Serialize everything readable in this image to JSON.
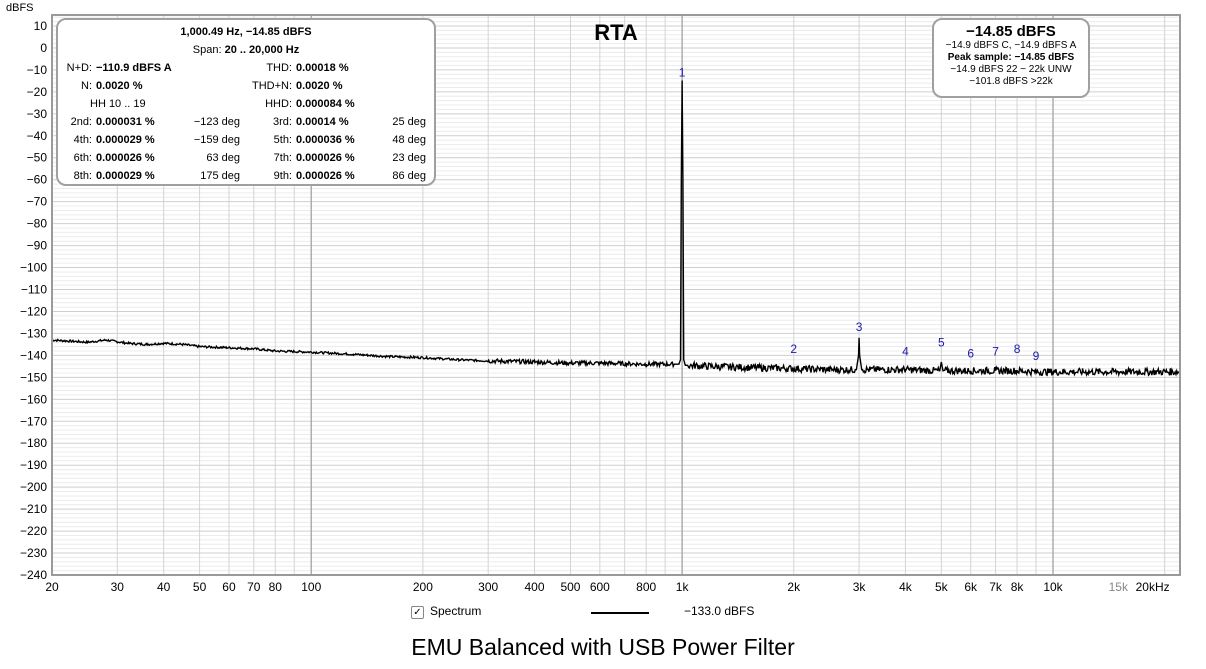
{
  "chart_data": {
    "type": "line",
    "title": "RTA",
    "bottom_title": "EMU Balanced with USB Power Filter",
    "ylabel": "dBFS",
    "xlabel": "",
    "x_scale": "log",
    "xlim": [
      20,
      22000
    ],
    "ylim": [
      -240,
      15
    ],
    "grid": true,
    "y_ticks": [
      10,
      0,
      -10,
      -20,
      -30,
      -40,
      -50,
      -60,
      -70,
      -80,
      -90,
      -100,
      -110,
      -120,
      -130,
      -140,
      -150,
      -160,
      -170,
      -180,
      -190,
      -200,
      -210,
      -220,
      -230,
      -240
    ],
    "y_tick_labels": [
      "10",
      "0",
      "−10",
      "−20",
      "−30",
      "−40",
      "−50",
      "−60",
      "−70",
      "−80",
      "−90",
      "−100",
      "−110",
      "−120",
      "−130",
      "−140",
      "−150",
      "−160",
      "−170",
      "−180",
      "−190",
      "−200",
      "−210",
      "−220",
      "−230",
      "−240"
    ],
    "x_ticks": [
      20,
      30,
      40,
      50,
      60,
      70,
      80,
      100,
      200,
      300,
      400,
      500,
      600,
      800,
      1000,
      2000,
      3000,
      4000,
      5000,
      6000,
      7000,
      8000,
      10000,
      15000,
      20000
    ],
    "x_tick_labels": [
      "20",
      "30",
      "40",
      "50",
      "60",
      "70",
      "80",
      "100",
      "200",
      "300",
      "400",
      "500",
      "600",
      "800",
      "1k",
      "2k",
      "3k",
      "4k",
      "5k",
      "6k",
      "7k",
      "8k",
      "10k",
      "15k",
      "20kHz"
    ],
    "series": [
      {
        "name": "Spectrum",
        "color": "#000000",
        "x": [
          20,
          25,
          28,
          32,
          36,
          40,
          45,
          50,
          60,
          70,
          80,
          100,
          130,
          160,
          200,
          250,
          300,
          400,
          500,
          600,
          800,
          980,
          990,
          995,
          1000,
          1005,
          1010,
          1020,
          1200,
          1500,
          2000,
          2500,
          2950,
          2990,
          3000,
          3010,
          3050,
          4000,
          4950,
          5000,
          5050,
          6000,
          7000,
          8000,
          9000,
          10000,
          12000,
          15000,
          18000,
          22000
        ],
        "y": [
          -133,
          -134,
          -133,
          -134.5,
          -135,
          -134.5,
          -135,
          -136,
          -136.5,
          -137,
          -138,
          -138.5,
          -139.5,
          -140.5,
          -141,
          -142,
          -142.5,
          -143,
          -143.5,
          -143.5,
          -144,
          -144,
          -142,
          -60,
          -14.85,
          -60,
          -142,
          -144.5,
          -145,
          -145.5,
          -146,
          -146.5,
          -146.5,
          -140,
          -132,
          -140,
          -146.5,
          -146.5,
          -147,
          -143,
          -147,
          -147,
          -147,
          -147,
          -147.5,
          -147.5,
          -147.5,
          -147.5,
          -147.5,
          -147.5
        ]
      }
    ],
    "harmonic_markers": [
      {
        "label": "1",
        "x": 1000,
        "y": -13
      },
      {
        "label": "2",
        "x": 2000,
        "y": -139
      },
      {
        "label": "3",
        "x": 3000,
        "y": -129
      },
      {
        "label": "4",
        "x": 4000,
        "y": -140
      },
      {
        "label": "5",
        "x": 5000,
        "y": -136
      },
      {
        "label": "6",
        "x": 6000,
        "y": -141
      },
      {
        "label": "7",
        "x": 7000,
        "y": -140
      },
      {
        "label": "8",
        "x": 8000,
        "y": -139
      },
      {
        "label": "9",
        "x": 9000,
        "y": -142
      }
    ],
    "marker_color": "#1a1aaa"
  },
  "left_box": {
    "header1": "1,000.49 Hz, −14.85 dBFS",
    "header2_label": "Span:",
    "header2_value": "20 .. 20,000 Hz",
    "nd_label": "N+D:",
    "nd_value": "−110.9 dBFS A",
    "thd_label": "THD:",
    "thd_value": "0.00018 %",
    "n_label": "N:",
    "n_value": "0.0020 %",
    "thdn_label": "THD+N:",
    "thdn_value": "0.0020 %",
    "hh_label": "HH 10 .. 19",
    "hhd_label": "HHD:",
    "hhd_value": "0.000084 %",
    "harmonics": [
      {
        "l1": "2nd:",
        "v1": "0.000031 %",
        "d1": "−123 deg",
        "l2": "3rd:",
        "v2": "0.00014 %",
        "d2": "25 deg"
      },
      {
        "l1": "4th:",
        "v1": "0.000029 %",
        "d1": "−159 deg",
        "l2": "5th:",
        "v2": "0.000036 %",
        "d2": "48 deg"
      },
      {
        "l1": "6th:",
        "v1": "0.000026 %",
        "d1": "63 deg",
        "l2": "7th:",
        "v2": "0.000026 %",
        "d2": "23 deg"
      },
      {
        "l1": "8th:",
        "v1": "0.000029 %",
        "d1": "175 deg",
        "l2": "9th:",
        "v2": "0.000026 %",
        "d2": "86 deg"
      }
    ]
  },
  "right_box": {
    "main": "−14.85 dBFS",
    "line1": "−14.9 dBFS C, −14.9 dBFS A",
    "line2": "Peak sample: −14.85 dBFS",
    "line3": "−14.9 dBFS 22 − 22k UNW",
    "line4": "−101.8 dBFS >22k"
  },
  "legend": {
    "checkbox_mark": "✓",
    "label": "Spectrum",
    "value": "−133.0 dBFS"
  }
}
